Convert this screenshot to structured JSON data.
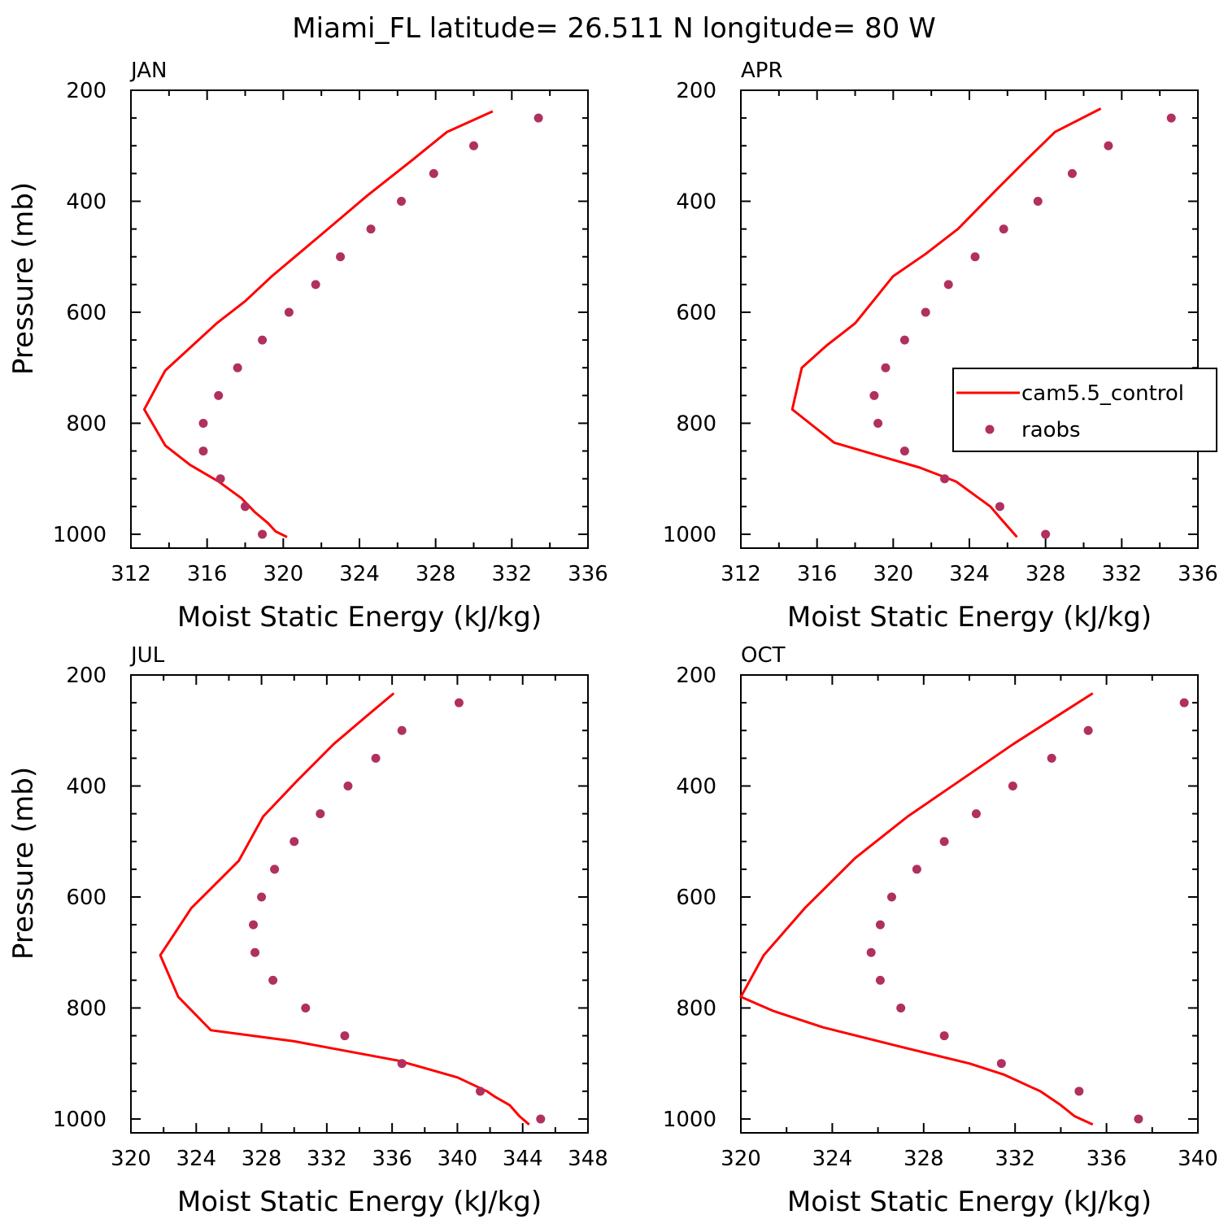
{
  "figure": {
    "title": "Miami_FL  latitude= 26.511 N longitude= 80 W"
  },
  "chart_data": [
    {
      "type": "line",
      "panel_label": "JAN",
      "xlabel": "Moist Static Energy (kJ/kg)",
      "ylabel": "Pressure (mb)",
      "xlim": [
        312,
        336
      ],
      "xticks": [
        312,
        316,
        320,
        324,
        328,
        332,
        336
      ],
      "ylim": [
        1025,
        200
      ],
      "yticks": [
        200,
        400,
        600,
        800,
        1000
      ],
      "show_ylabel": true,
      "legend": null,
      "series": [
        {
          "name": "cam5.5_control",
          "style": "line",
          "color": "#ff0000",
          "x": [
            331.0,
            328.6,
            326.8,
            324.4,
            322.0,
            319.4,
            318.0,
            316.5,
            313.8,
            312.7,
            313.8,
            315.1,
            316.6,
            317.8,
            318.5,
            319.2,
            319.6,
            320.2
          ],
          "y": [
            238,
            275,
            325,
            390,
            460,
            535,
            580,
            620,
            705,
            775,
            840,
            875,
            905,
            935,
            960,
            980,
            995,
            1005
          ]
        },
        {
          "name": "raobs",
          "style": "marker",
          "color": "#b03060",
          "x": [
            333.4,
            330.0,
            327.9,
            326.2,
            324.6,
            323.0,
            321.7,
            320.3,
            318.9,
            317.6,
            316.6,
            315.8,
            315.8,
            316.7,
            318.0,
            318.9
          ],
          "y": [
            250,
            300,
            350,
            400,
            450,
            500,
            550,
            600,
            650,
            700,
            750,
            800,
            850,
            900,
            950,
            1000
          ]
        }
      ]
    },
    {
      "type": "line",
      "panel_label": "APR",
      "xlabel": "Moist Static Energy (kJ/kg)",
      "ylabel": "",
      "xlim": [
        312,
        336
      ],
      "xticks": [
        312,
        316,
        320,
        324,
        328,
        332,
        336
      ],
      "ylim": [
        1025,
        200
      ],
      "yticks": [
        200,
        400,
        600,
        800,
        1000
      ],
      "show_ylabel": false,
      "legend": {
        "position": "right",
        "entries": [
          "cam5.5_control",
          "raobs"
        ]
      },
      "series": [
        {
          "name": "cam5.5_control",
          "style": "line",
          "color": "#ff0000",
          "x": [
            330.9,
            328.5,
            327.0,
            325.4,
            323.4,
            321.7,
            320.0,
            318.0,
            316.5,
            315.2,
            314.7,
            316.9,
            319.4,
            321.4,
            323.3,
            324.3,
            325.1,
            325.6,
            326.5
          ],
          "y": [
            233,
            275,
            325,
            380,
            450,
            495,
            535,
            620,
            660,
            700,
            775,
            835,
            860,
            880,
            905,
            930,
            950,
            970,
            1005
          ]
        },
        {
          "name": "raobs",
          "style": "marker",
          "color": "#b03060",
          "x": [
            334.6,
            331.3,
            329.4,
            327.6,
            325.8,
            324.3,
            322.9,
            321.7,
            320.6,
            319.6,
            319.0,
            319.2,
            320.6,
            322.7,
            325.6,
            328.0
          ],
          "y": [
            250,
            300,
            350,
            400,
            450,
            500,
            550,
            600,
            650,
            700,
            750,
            800,
            850,
            900,
            950,
            1000
          ]
        }
      ]
    },
    {
      "type": "line",
      "panel_label": "JUL",
      "xlabel": "Moist Static Energy (kJ/kg)",
      "ylabel": "Pressure (mb)",
      "xlim": [
        320,
        348
      ],
      "xticks": [
        320,
        324,
        328,
        332,
        336,
        340,
        344,
        348
      ],
      "ylim": [
        1025,
        200
      ],
      "yticks": [
        200,
        400,
        600,
        800,
        1000
      ],
      "show_ylabel": true,
      "legend": null,
      "series": [
        {
          "name": "cam5.5_control",
          "style": "line",
          "color": "#ff0000",
          "x": [
            336.1,
            334.4,
            332.4,
            330.2,
            328.1,
            326.6,
            323.7,
            321.8,
            322.9,
            324.9,
            330.0,
            336.4,
            340.0,
            341.8,
            342.3,
            343.2,
            343.8,
            344.4
          ],
          "y": [
            233,
            275,
            325,
            390,
            455,
            535,
            620,
            705,
            780,
            840,
            860,
            895,
            925,
            950,
            960,
            975,
            995,
            1010
          ]
        },
        {
          "name": "raobs",
          "style": "marker",
          "color": "#b03060",
          "x": [
            340.1,
            336.6,
            335.0,
            333.3,
            331.6,
            330.0,
            328.8,
            328.0,
            327.5,
            327.6,
            328.7,
            330.7,
            333.1,
            336.6,
            341.4,
            345.1
          ],
          "y": [
            250,
            300,
            350,
            400,
            450,
            500,
            550,
            600,
            650,
            700,
            750,
            800,
            850,
            900,
            950,
            1000
          ]
        }
      ]
    },
    {
      "type": "line",
      "panel_label": "OCT",
      "xlabel": "Moist Static Energy (kJ/kg)",
      "ylabel": "",
      "xlim": [
        320,
        340
      ],
      "xticks": [
        320,
        324,
        328,
        332,
        336,
        340
      ],
      "ylim": [
        1025,
        200
      ],
      "yticks": [
        200,
        400,
        600,
        800,
        1000
      ],
      "show_ylabel": false,
      "legend": null,
      "series": [
        {
          "name": "cam5.5_control",
          "style": "line",
          "color": "#ff0000",
          "x": [
            335.4,
            333.8,
            331.9,
            329.6,
            327.3,
            325.0,
            322.8,
            321.0,
            320.0,
            321.4,
            323.6,
            327.0,
            330.0,
            331.5,
            333.1,
            334.0,
            334.6,
            335.4
          ],
          "y": [
            233,
            275,
            325,
            390,
            455,
            530,
            620,
            705,
            780,
            805,
            835,
            870,
            900,
            920,
            950,
            975,
            995,
            1010
          ]
        },
        {
          "name": "raobs",
          "style": "marker",
          "color": "#b03060",
          "x": [
            339.4,
            335.2,
            333.6,
            331.9,
            330.3,
            328.9,
            327.7,
            326.6,
            326.1,
            325.7,
            326.1,
            327.0,
            328.9,
            331.4,
            334.8,
            337.4
          ],
          "y": [
            250,
            300,
            350,
            400,
            450,
            500,
            550,
            600,
            650,
            700,
            750,
            800,
            850,
            900,
            950,
            1000
          ]
        }
      ]
    }
  ]
}
